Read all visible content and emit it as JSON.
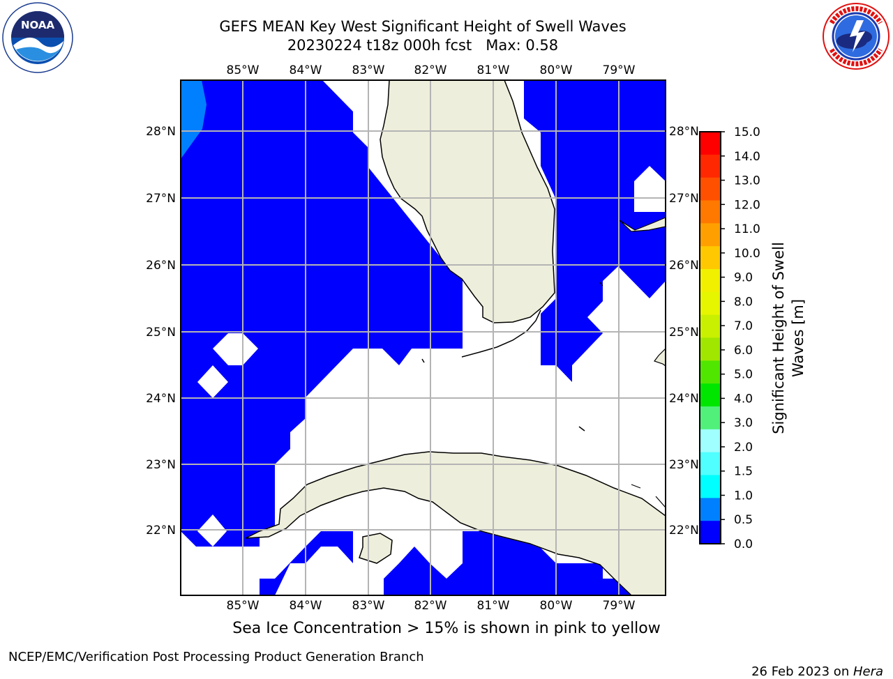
{
  "title": {
    "line1": "GEFS MEAN Key West Significant Height of Swell Waves",
    "line2": "20230224 t18z 000h fcst   Max: 0.58"
  },
  "logos": {
    "left": {
      "icon": "noaa-logo",
      "text": "NOAA",
      "ring_text": "NATIONAL OCEANIC AND ATMOSPHERIC ADMINISTRATION · U.S. DEPARTMENT OF COMMERCE"
    },
    "right": {
      "icon": "nws-logo",
      "ring_text": "NATIONAL WEATHER SERVICE"
    }
  },
  "map": {
    "lon_labels": [
      "85°W",
      "84°W",
      "83°W",
      "82°W",
      "81°W",
      "80°W",
      "79°W"
    ],
    "lat_labels": [
      "28°N",
      "27°N",
      "26°N",
      "25°N",
      "24°N",
      "23°N",
      "22°N"
    ],
    "colors": {
      "ocean_low": "#0000ff",
      "ocean_mid": "#0080ff",
      "land": "#eeeedc",
      "grid": "#b4b4b4",
      "no_data": "#ffffff"
    }
  },
  "colorbar": {
    "label_line1": "Significant Height of Swell",
    "label_line2": "Waves [m]",
    "ticks": [
      "15.0",
      "14.0",
      "13.0",
      "12.0",
      "11.0",
      "10.0",
      "9.0",
      "8.0",
      "7.0",
      "6.0",
      "5.0",
      "4.0",
      "3.0",
      "2.0",
      "1.5",
      "1.0",
      "0.5",
      "0.0"
    ],
    "colors": [
      "#ff0000",
      "#ff2800",
      "#ff5000",
      "#ff7800",
      "#ffa000",
      "#ffc800",
      "#f0f000",
      "#e6f500",
      "#c8f000",
      "#a0e600",
      "#50e600",
      "#00e600",
      "#50f07a",
      "#a0ffff",
      "#50ffff",
      "#00ffff",
      "#0080ff",
      "#0000ff"
    ]
  },
  "note": "Sea Ice Concentration > 15% is shown in pink to yellow",
  "footer": {
    "left": "NCEP/EMC/Verification Post Processing Product Generation Branch",
    "right_prefix": "26 Feb 2023 on ",
    "right_host": "Hera"
  }
}
